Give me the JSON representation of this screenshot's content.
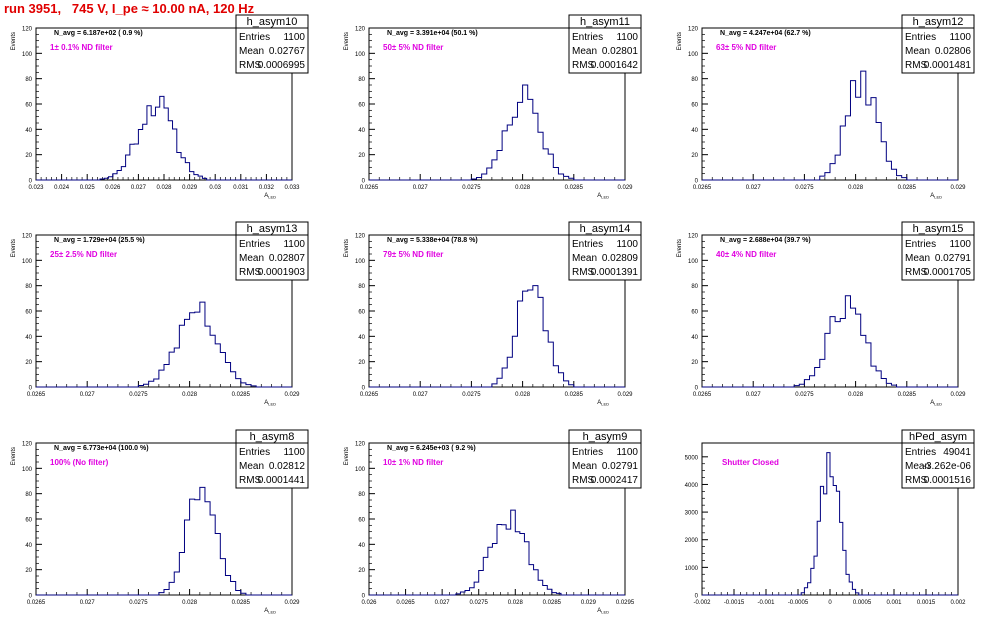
{
  "header": {
    "title": "run 3951,   745 V, I_pe ≈ 10.00 nA, 120 Hz"
  },
  "colors": {
    "title": "#e00000",
    "histogram": "#000080",
    "annotation": "#e000e0",
    "frame": "#000000"
  },
  "chart_data": [
    {
      "type": "histogram",
      "name": "h_asym10",
      "navg": "N_avg = 6.187e+02 ( 0.9 %)",
      "filter": "1± 0.1% ND filter",
      "stats": {
        "Entries": "1100",
        "Mean": "0.02767",
        "RMS": "0.0006995"
      },
      "xlabel": "A_LED",
      "ylabel": "Events",
      "xlim": [
        0.023,
        0.033
      ],
      "xticks": [
        "0.023",
        "0.024",
        "0.025",
        "0.026",
        "0.027",
        "0.028",
        "0.029",
        "0.03",
        "0.031",
        "0.032",
        "0.033"
      ],
      "ylim": [
        0,
        120
      ],
      "yticks": [
        "0",
        "20",
        "40",
        "60",
        "80",
        "100",
        "120"
      ],
      "peak": 66,
      "nbins": 60,
      "seed": 11
    },
    {
      "type": "histogram",
      "name": "h_asym11",
      "navg": "N_avg = 3.391e+04 (50.1 %)",
      "filter": "50± 5% ND filter",
      "stats": {
        "Entries": "1100",
        "Mean": "0.02801",
        "RMS": "0.0001642"
      },
      "xlabel": "A_LED",
      "ylabel": "Events",
      "xlim": [
        0.0265,
        0.029
      ],
      "xticks": [
        "0.0265",
        "0.027",
        "0.0275",
        "0.028",
        "0.0285",
        "0.029"
      ],
      "ylim": [
        0,
        120
      ],
      "yticks": [
        "0",
        "20",
        "40",
        "60",
        "80",
        "100",
        "120"
      ],
      "peak": 75,
      "nbins": 50,
      "seed": 23
    },
    {
      "type": "histogram",
      "name": "h_asym12",
      "navg": "N_avg = 4.247e+04 (62.7 %)",
      "filter": "63± 5% ND filter",
      "stats": {
        "Entries": "1100",
        "Mean": "0.02806",
        "RMS": "0.0001481"
      },
      "xlabel": "A_LED",
      "ylabel": "Events",
      "xlim": [
        0.0265,
        0.029
      ],
      "xticks": [
        "0.0265",
        "0.027",
        "0.0275",
        "0.028",
        "0.0285",
        "0.029"
      ],
      "ylim": [
        0,
        120
      ],
      "yticks": [
        "0",
        "20",
        "40",
        "60",
        "80",
        "100",
        "120"
      ],
      "peak": 86,
      "nbins": 50,
      "seed": 37
    },
    {
      "type": "histogram",
      "name": "h_asym13",
      "navg": "N_avg = 1.729e+04 (25.5 %)",
      "filter": "25± 2.5% ND filter",
      "stats": {
        "Entries": "1100",
        "Mean": "0.02807",
        "RMS": "0.0001903"
      },
      "xlabel": "A_LED",
      "ylabel": "Events",
      "xlim": [
        0.0265,
        0.029
      ],
      "xticks": [
        "0.0265",
        "0.027",
        "0.0275",
        "0.028",
        "0.0285",
        "0.029"
      ],
      "ylim": [
        0,
        120
      ],
      "yticks": [
        "0",
        "20",
        "40",
        "60",
        "80",
        "100",
        "120"
      ],
      "peak": 67,
      "nbins": 50,
      "seed": 41
    },
    {
      "type": "histogram",
      "name": "h_asym14",
      "navg": "N_avg = 5.338e+04 (78.8 %)",
      "filter": "79± 5% ND filter",
      "stats": {
        "Entries": "1100",
        "Mean": "0.02809",
        "RMS": "0.0001391"
      },
      "xlabel": "A_LED",
      "ylabel": "Events",
      "xlim": [
        0.0265,
        0.029
      ],
      "xticks": [
        "0.0265",
        "0.027",
        "0.0275",
        "0.028",
        "0.0285",
        "0.029"
      ],
      "ylim": [
        0,
        120
      ],
      "yticks": [
        "0",
        "20",
        "40",
        "60",
        "80",
        "100",
        "120"
      ],
      "peak": 80,
      "nbins": 50,
      "seed": 53
    },
    {
      "type": "histogram",
      "name": "h_asym15",
      "navg": "N_avg = 2.688e+04 (39.7 %)",
      "filter": "40± 4% ND filter",
      "stats": {
        "Entries": "1100",
        "Mean": "0.02791",
        "RMS": "0.0001705"
      },
      "xlabel": "A_LED",
      "ylabel": "Events",
      "xlim": [
        0.0265,
        0.029
      ],
      "xticks": [
        "0.0265",
        "0.027",
        "0.0275",
        "0.028",
        "0.0285",
        "0.029"
      ],
      "ylim": [
        0,
        120
      ],
      "yticks": [
        "0",
        "20",
        "40",
        "60",
        "80",
        "100",
        "120"
      ],
      "peak": 72,
      "nbins": 50,
      "seed": 67
    },
    {
      "type": "histogram",
      "name": "h_asym8",
      "navg": "N_avg = 6.773e+04 (100.0 %)",
      "filter": "100% (No filter)",
      "stats": {
        "Entries": "1100",
        "Mean": "0.02812",
        "RMS": "0.0001441"
      },
      "xlabel": "A_LED",
      "ylabel": "Events",
      "xlim": [
        0.0265,
        0.029
      ],
      "xticks": [
        "0.0265",
        "0.027",
        "0.0275",
        "0.028",
        "0.0285",
        "0.029"
      ],
      "ylim": [
        0,
        120
      ],
      "yticks": [
        "0",
        "20",
        "40",
        "60",
        "80",
        "100",
        "120"
      ],
      "peak": 85,
      "nbins": 50,
      "seed": 79
    },
    {
      "type": "histogram",
      "name": "h_asym9",
      "navg": "N_avg = 6.245e+03 ( 9.2 %)",
      "filter": "10± 1% ND filter",
      "stats": {
        "Entries": "1100",
        "Mean": "0.02791",
        "RMS": "0.0002417"
      },
      "xlabel": "A_LED",
      "ylabel": "Events",
      "xlim": [
        0.026,
        0.0295
      ],
      "xticks": [
        "0.026",
        "0.0265",
        "0.027",
        "0.0275",
        "0.028",
        "0.0285",
        "0.029",
        "0.0295"
      ],
      "ylim": [
        0,
        120
      ],
      "yticks": [
        "0",
        "20",
        "40",
        "60",
        "80",
        "100",
        "120"
      ],
      "peak": 67,
      "nbins": 56,
      "seed": 83
    },
    {
      "type": "histogram",
      "name": "hPed_asym",
      "navg": "",
      "filter": "Shutter Closed",
      "stats": {
        "Entries": "49041",
        "Mean": "-3.262e-06",
        "RMS": "0.0001516"
      },
      "xlabel": "",
      "ylabel": "",
      "xlim": [
        -0.002,
        0.002
      ],
      "xticks": [
        "-0.002",
        "-0.0015",
        "-0.001",
        "-0.0005",
        "0",
        "0.0005",
        "0.001",
        "0.0015",
        "0.002"
      ],
      "ylim": [
        0,
        5500
      ],
      "yticks": [
        "0",
        "1000",
        "2000",
        "3000",
        "4000",
        "5000"
      ],
      "peak": 5150,
      "nbins": 80,
      "seed": 97
    }
  ]
}
